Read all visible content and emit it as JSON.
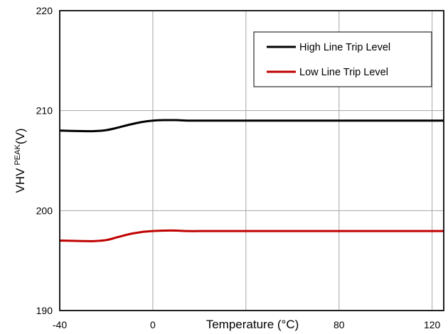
{
  "chart_data": {
    "type": "line",
    "xlabel": "Temperature (°C)",
    "ylabel_main": "VHV",
    "ylabel_sub": "PEAK",
    "ylabel_unit": "(V)",
    "xlim": [
      -40,
      125
    ],
    "ylim": [
      190,
      220
    ],
    "xticks": [
      -40,
      0,
      40,
      80,
      120
    ],
    "xtick_labels": [
      "-40",
      "0",
      "",
      "80",
      "120"
    ],
    "yticks": [
      190,
      200,
      210,
      220
    ],
    "ytick_labels": [
      "190",
      "200",
      "210",
      "220"
    ],
    "grid": true,
    "legend_position": "top-right",
    "series": [
      {
        "name": "High Line Trip Level",
        "color": "#000000",
        "x": [
          -40,
          -30,
          -25,
          -20,
          -15,
          -10,
          -5,
          0,
          5,
          10,
          15,
          20,
          25,
          40,
          80,
          125
        ],
        "y": [
          208.0,
          207.95,
          207.95,
          208.05,
          208.3,
          208.6,
          208.85,
          209.0,
          209.05,
          209.05,
          209.0,
          209.0,
          209.0,
          209.0,
          209.0,
          209.0
        ]
      },
      {
        "name": "Low Line Trip Level",
        "color": "#c00000",
        "x": [
          -40,
          -30,
          -25,
          -20,
          -15,
          -10,
          -5,
          0,
          5,
          10,
          15,
          20,
          25,
          40,
          80,
          125
        ],
        "y": [
          197.0,
          196.95,
          196.95,
          197.05,
          197.35,
          197.65,
          197.85,
          197.95,
          198.0,
          198.0,
          197.95,
          197.95,
          197.95,
          197.95,
          197.95,
          197.95
        ]
      }
    ]
  }
}
